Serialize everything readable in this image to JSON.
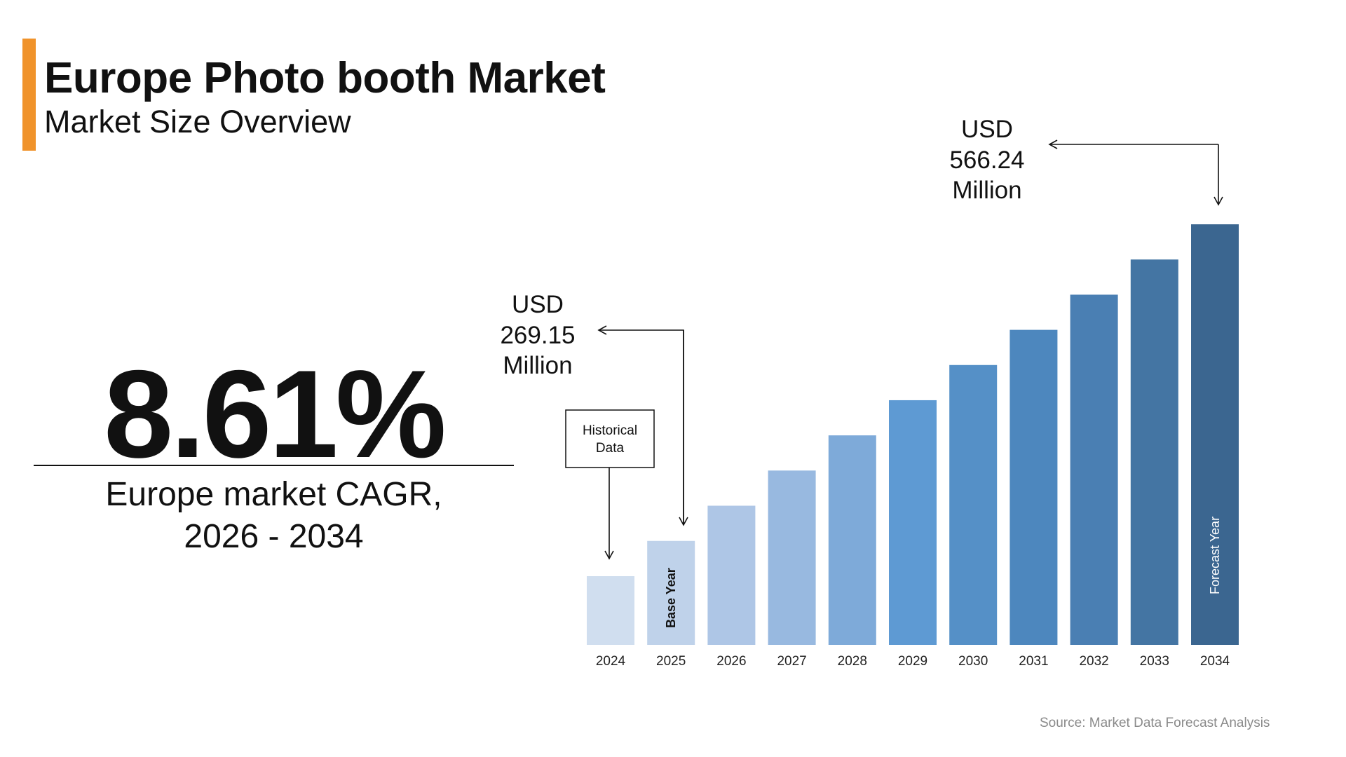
{
  "header": {
    "title": "Europe Photo booth Market",
    "subtitle": "Market Size Overview",
    "accent_color": "#f0932b"
  },
  "kpi": {
    "value": "8.61%",
    "label_line1": "Europe market CAGR,",
    "label_line2": "2026 - 2034"
  },
  "annotations": {
    "base": {
      "line1": "USD",
      "line2": "269.15",
      "line3": "Million"
    },
    "forecast": {
      "line1": "USD",
      "line2": "566.24",
      "line3": "Million"
    },
    "historical_box": {
      "line1": "Historical",
      "line2": "Data"
    },
    "base_year_label": "Base Year",
    "forecast_year_label": "Forecast Year"
  },
  "source": "Source: Market Data Forecast Analysis",
  "chart_data": {
    "type": "bar",
    "categories": [
      "2024",
      "2025",
      "2026",
      "2027",
      "2028",
      "2029",
      "2030",
      "2031",
      "2032",
      "2033",
      "2034"
    ],
    "values": [
      236.1,
      269.15,
      302.2,
      335.2,
      368.2,
      401.2,
      434.2,
      467.2,
      500.2,
      533.2,
      566.24
    ],
    "units": "USD Million",
    "ylim": [
      171,
      566.24
    ],
    "grid": false,
    "colors": [
      "#d0deef",
      "#bfd2ea",
      "#aec6e6",
      "#98b9e0",
      "#7eaad9",
      "#5e9ad3",
      "#5590c7",
      "#4d87be",
      "#4a7fb3",
      "#4475a3",
      "#3b6690"
    ]
  }
}
